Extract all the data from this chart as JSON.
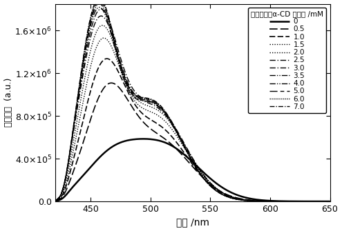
{
  "title": "混合溶液中α-CD 的浓度 /mM",
  "xlabel": "波长 /nm",
  "ylabel": "发射强度  (a.u.)",
  "xlim": [
    420,
    650
  ],
  "ylim": [
    0,
    1850000.0
  ],
  "yticks": [
    0,
    400000.0,
    800000.0,
    1200000.0,
    1600000.0
  ],
  "xticks": [
    450,
    500,
    550,
    600,
    650
  ],
  "series": [
    {
      "label": "0",
      "ls_key": "solid",
      "lw": 1.8,
      "peak1": 320000.0,
      "wl1": 465,
      "sig1": 22,
      "peak2": 520000.0,
      "wl2": 510,
      "sig2": 30
    },
    {
      "label": "0.5",
      "ls_key": "dashed_lg",
      "lw": 1.2,
      "peak1": 900000.0,
      "wl1": 463,
      "sig1": 18,
      "peak2": 580000.0,
      "wl2": 505,
      "sig2": 28
    },
    {
      "label": "1.0",
      "ls_key": "dashed_md",
      "lw": 1.2,
      "peak1": 1120000.0,
      "wl1": 460,
      "sig1": 17,
      "peak2": 700000.0,
      "wl2": 503,
      "sig2": 27
    },
    {
      "label": "1.5",
      "ls_key": "dotted",
      "lw": 1.0,
      "peak1": 1300000.0,
      "wl1": 458,
      "sig1": 16,
      "peak2": 800000.0,
      "wl2": 502,
      "sig2": 27
    },
    {
      "label": "2.0",
      "ls_key": "dotted2",
      "lw": 1.0,
      "peak1": 1420000.0,
      "wl1": 457,
      "sig1": 16,
      "peak2": 850000.0,
      "wl2": 502,
      "sig2": 27
    },
    {
      "label": "2.5",
      "ls_key": "dashdot",
      "lw": 1.0,
      "peak1": 1500000.0,
      "wl1": 456,
      "sig1": 16,
      "peak2": 880000.0,
      "wl2": 501,
      "sig2": 27
    },
    {
      "label": "3.0",
      "ls_key": "dashdot2",
      "lw": 1.0,
      "peak1": 1560000.0,
      "wl1": 456,
      "sig1": 16,
      "peak2": 900000.0,
      "wl2": 501,
      "sig2": 27
    },
    {
      "label": "3.5",
      "ls_key": "dashdotdot",
      "lw": 1.0,
      "peak1": 1600000.0,
      "wl1": 455,
      "sig1": 15,
      "peak2": 910000.0,
      "wl2": 500,
      "sig2": 26
    },
    {
      "label": "4.0",
      "ls_key": "dashdotdot2",
      "lw": 1.0,
      "peak1": 1630000.0,
      "wl1": 455,
      "sig1": 15,
      "peak2": 920000.0,
      "wl2": 500,
      "sig2": 26
    },
    {
      "label": "5.0",
      "ls_key": "longdash",
      "lw": 1.0,
      "peak1": 1650000.0,
      "wl1": 455,
      "sig1": 15,
      "peak2": 930000.0,
      "wl2": 500,
      "sig2": 26
    },
    {
      "label": "6.0",
      "ls_key": "densedot",
      "lw": 1.0,
      "peak1": 1670000.0,
      "wl1": 455,
      "sig1": 15,
      "peak2": 935000.0,
      "wl2": 500,
      "sig2": 26
    },
    {
      "label": "7.0",
      "ls_key": "dashdotmix",
      "lw": 1.0,
      "peak1": 1680000.0,
      "wl1": 455,
      "sig1": 15,
      "peak2": 940000.0,
      "wl2": 500,
      "sig2": 26
    }
  ],
  "background_color": "#ffffff",
  "line_color": "#000000"
}
